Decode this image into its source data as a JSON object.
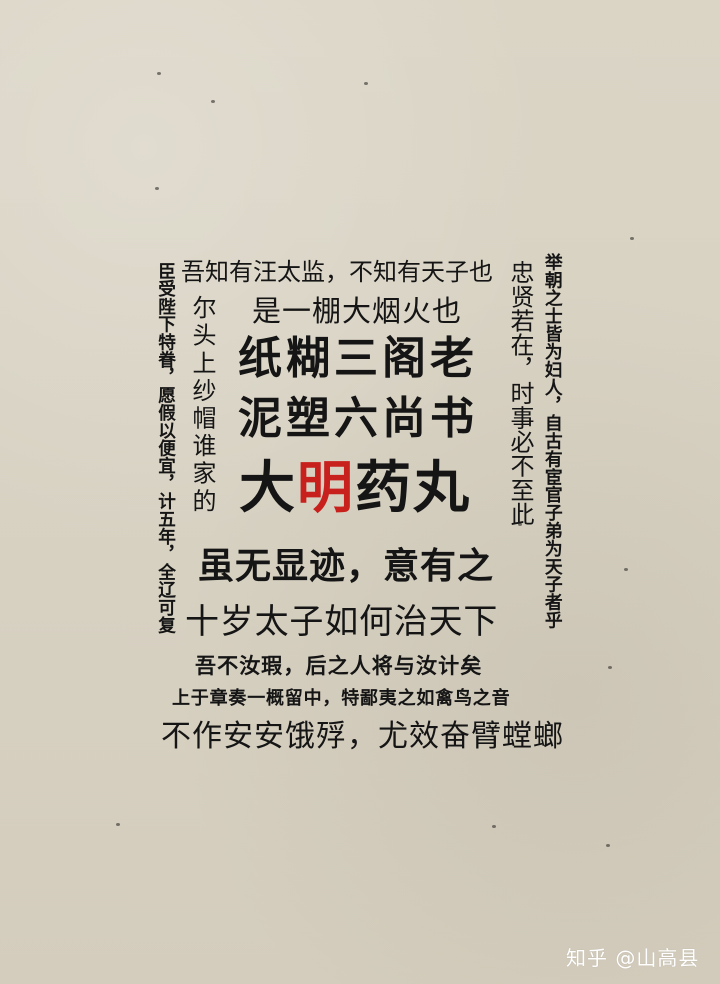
{
  "top_line": "吾知有汪太监，不知有天子也",
  "left_vertical_1": "臣受陛下特眷，愿假以便宜，计五年，全辽可复",
  "left_vertical_2": "尔头上纱帽谁家的",
  "right_vertical_1": "忠贤若在，时事必不至此",
  "right_vertical_2": "举朝之士皆为妇人，自古有宦官子弟为天子者乎",
  "line_fireworks": "是一棚大烟火也",
  "line_paper_paste": "纸糊三阁老",
  "line_clay": "泥塑六尚书",
  "line_big_prefix": "大",
  "line_big_red": "明",
  "line_big_suffix": "药丸",
  "line_no_trace": "虽无显迹，意有之",
  "line_ten_year": "十岁太子如何治天下",
  "line_not_flaw": "吾不汝瑕，后之人将与汝计矣",
  "line_memorial": "上于章奏一概留中，特鄙夷之如禽鸟之音",
  "line_bottom": "不作安安饿殍，尤效奋臂螳螂",
  "watermark": "知乎 @山高县"
}
